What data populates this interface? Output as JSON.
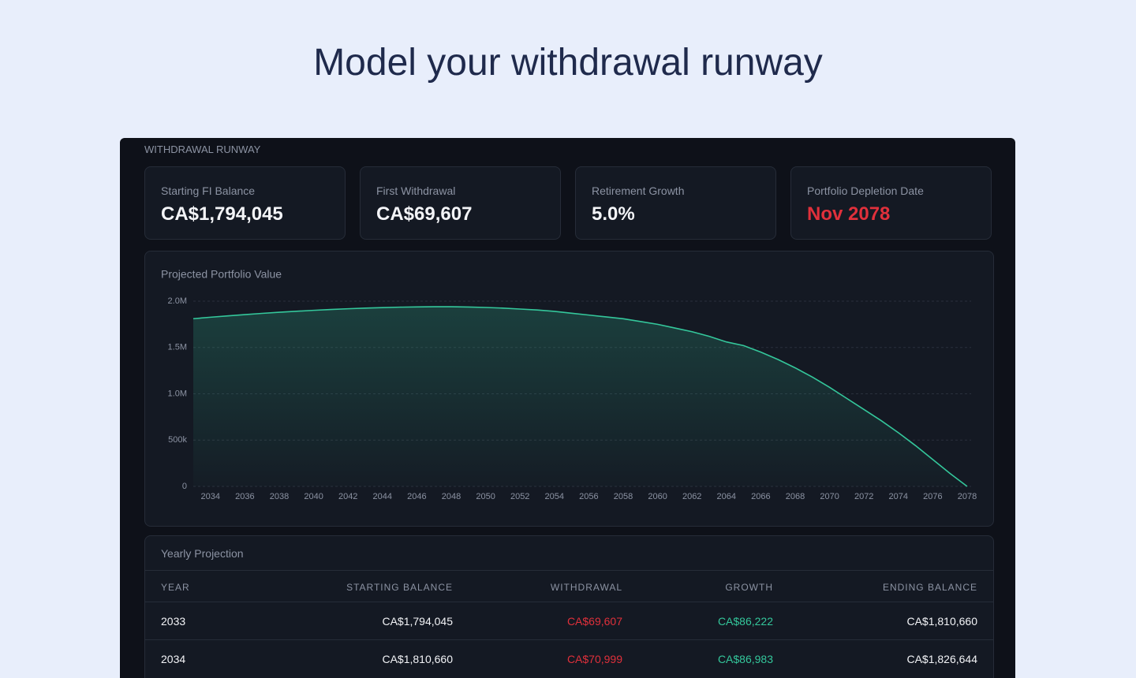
{
  "header": {
    "title": "Model your withdrawal runway"
  },
  "panel": {
    "label": "WITHDRAWAL RUNWAY",
    "cards": [
      {
        "label": "Starting FI Balance",
        "value": "CA$1,794,045"
      },
      {
        "label": "First Withdrawal",
        "value": "CA$69,607"
      },
      {
        "label": "Retirement Growth",
        "value": "5.0%"
      },
      {
        "label": "Portfolio Depletion Date",
        "value": "Nov 2078"
      }
    ]
  },
  "chart_data": {
    "type": "area",
    "title": "Projected Portfolio Value",
    "color": "#34c79b",
    "grid": true,
    "x": [
      2033,
      2034,
      2035,
      2036,
      2037,
      2038,
      2039,
      2040,
      2041,
      2042,
      2043,
      2044,
      2045,
      2046,
      2047,
      2048,
      2049,
      2050,
      2051,
      2052,
      2053,
      2054,
      2055,
      2056,
      2057,
      2058,
      2059,
      2060,
      2061,
      2062,
      2063,
      2064,
      2065,
      2066,
      2067,
      2068,
      2069,
      2070,
      2071,
      2072,
      2073,
      2074,
      2075,
      2076,
      2077,
      2078
    ],
    "values": [
      1810660,
      1826644,
      1841000,
      1855000,
      1868000,
      1880000,
      1891000,
      1901000,
      1910000,
      1918000,
      1925000,
      1930000,
      1935000,
      1938000,
      1940000,
      1940000,
      1937000,
      1932000,
      1925000,
      1915000,
      1905000,
      1890000,
      1870000,
      1850000,
      1830000,
      1810000,
      1780000,
      1750000,
      1710000,
      1670000,
      1620000,
      1560000,
      1520000,
      1450000,
      1370000,
      1280000,
      1180000,
      1070000,
      950000,
      830000,
      710000,
      580000,
      440000,
      290000,
      140000,
      0
    ],
    "xlim": [
      2033,
      2078
    ],
    "ylim": [
      0,
      2000000
    ],
    "xticks": [
      2034,
      2036,
      2038,
      2040,
      2042,
      2044,
      2046,
      2048,
      2050,
      2052,
      2054,
      2056,
      2058,
      2060,
      2062,
      2064,
      2066,
      2068,
      2070,
      2072,
      2074,
      2076,
      2078
    ],
    "yticks": [
      0,
      {
        "value": 500000,
        "label": "500k"
      },
      {
        "value": 1000000,
        "label": "1.0M"
      },
      {
        "value": 1500000,
        "label": "1.5M"
      },
      {
        "value": 2000000,
        "label": "2.0M"
      }
    ]
  },
  "table": {
    "title": "Yearly Projection",
    "columns": [
      "YEAR",
      "STARTING BALANCE",
      "WITHDRAWAL",
      "GROWTH",
      "ENDING BALANCE"
    ],
    "rows": [
      [
        "2033",
        "CA$1,794,045",
        "CA$69,607",
        "CA$86,222",
        "CA$1,810,660"
      ],
      [
        "2034",
        "CA$1,810,660",
        "CA$70,999",
        "CA$86,983",
        "CA$1,826,644"
      ]
    ]
  }
}
